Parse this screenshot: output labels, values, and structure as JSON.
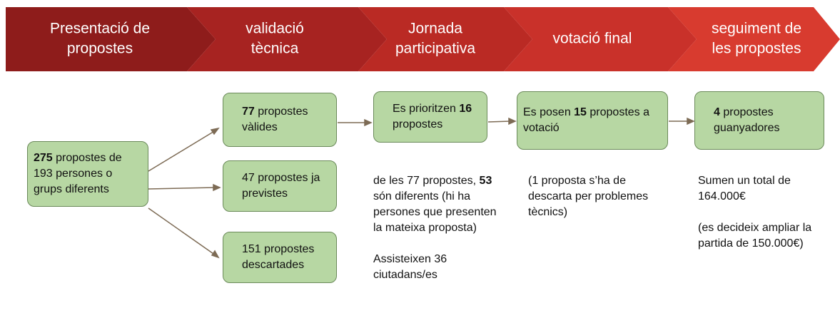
{
  "stages": [
    {
      "lines": [
        "Presentació de",
        "propostes"
      ]
    },
    {
      "lines": [
        "validació",
        "tècnica"
      ]
    },
    {
      "lines": [
        "Jornada",
        "participativa"
      ]
    },
    {
      "lines": [
        "votació final"
      ]
    },
    {
      "lines": [
        "seguiment de",
        "les propostes"
      ]
    }
  ],
  "boxes": [
    {
      "parts": [
        {
          "text": "275",
          "bold": true
        },
        {
          "text": " propostes de 193 persones o grups diferents"
        }
      ]
    },
    {
      "parts": [
        {
          "text": "77",
          "bold": true
        },
        {
          "text": " propostes vàlides"
        }
      ]
    },
    {
      "parts": [
        {
          "text": "47 propostes ja previstes"
        }
      ]
    },
    {
      "parts": [
        {
          "text": "151 propostes descartades"
        }
      ]
    },
    {
      "parts": [
        {
          "text": "Es prioritzen "
        },
        {
          "text": "16",
          "bold": true
        },
        {
          "text": " propostes"
        }
      ]
    },
    {
      "parts": [
        {
          "text": "Es posen "
        },
        {
          "text": "15",
          "bold": true
        },
        {
          "text": " propostes a votació"
        }
      ]
    },
    {
      "parts": [
        {
          "text": "4",
          "bold": true
        },
        {
          "text": " propostes guanyadores"
        }
      ]
    }
  ],
  "notes": [
    {
      "paragraphs": [
        [
          {
            "text": "de les 77 propostes, "
          },
          {
            "text": "53",
            "bold": true
          },
          {
            "text": " són diferents (hi ha persones que presenten la mateixa proposta)"
          }
        ],
        [
          {
            "text": "Assisteixen 36 ciutadans/es"
          }
        ]
      ]
    },
    {
      "paragraphs": [
        [
          {
            "text": "(1 proposta s’ha de descarta per problemes tècnics)"
          }
        ]
      ]
    },
    {
      "paragraphs": [
        [
          {
            "text": "Sumen un total de 164.000€"
          }
        ],
        [
          {
            "text": "(es decideix ampliar la partida de 150.000€)"
          }
        ]
      ]
    }
  ]
}
